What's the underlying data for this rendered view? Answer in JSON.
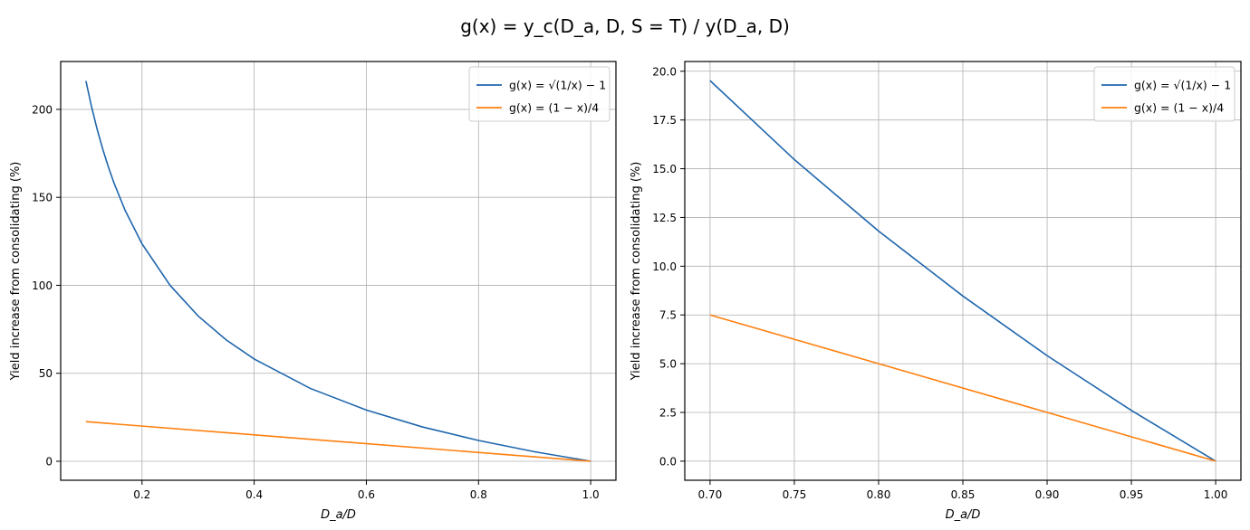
{
  "figure": {
    "title": "g(x) = y_c(D_a, D, S = T) / y(D_a, D)"
  },
  "chart_data": [
    {
      "type": "line",
      "xlabel": "D_a/D",
      "ylabel": "Yield increase from consolidating (%)",
      "xlim": [
        0.055,
        1.045
      ],
      "ylim": [
        -10.8,
        227.2
      ],
      "xticks": [
        0.2,
        0.4,
        0.6,
        0.8,
        1.0
      ],
      "xtick_labels": [
        "0.2",
        "0.4",
        "0.6",
        "0.8",
        "1.0"
      ],
      "yticks": [
        0,
        50,
        100,
        150,
        200
      ],
      "ytick_labels": [
        "0",
        "50",
        "100",
        "150",
        "200"
      ],
      "grid": true,
      "legend_position": "top-right",
      "series": [
        {
          "name": "g(x) = √(1/x) − 1",
          "color": "#1f66ac",
          "x": [
            0.1,
            0.11,
            0.12,
            0.13,
            0.14,
            0.15,
            0.17,
            0.2,
            0.25,
            0.3,
            0.35,
            0.4,
            0.5,
            0.6,
            0.7,
            0.8,
            0.9,
            1.0
          ],
          "y": [
            216.2,
            201.5,
            188.7,
            177.4,
            167.3,
            158.2,
            142.5,
            123.6,
            100.0,
            82.6,
            69.0,
            58.1,
            41.4,
            29.1,
            19.5,
            11.8,
            5.4,
            0.0
          ]
        },
        {
          "name": "g(x) = (1 − x)/4",
          "color": "#ff7f0e",
          "x": [
            0.1,
            1.0
          ],
          "y": [
            22.5,
            0.0
          ]
        }
      ]
    },
    {
      "type": "line",
      "xlabel": "D_a/D",
      "ylabel": "Yield increase from consolidating (%)",
      "xlim": [
        0.685,
        1.015
      ],
      "ylim": [
        -0.98,
        20.5
      ],
      "xticks": [
        0.7,
        0.75,
        0.8,
        0.85,
        0.9,
        0.95,
        1.0
      ],
      "xtick_labels": [
        "0.70",
        "0.75",
        "0.80",
        "0.85",
        "0.90",
        "0.95",
        "1.00"
      ],
      "yticks": [
        0.0,
        2.5,
        5.0,
        7.5,
        10.0,
        12.5,
        15.0,
        17.5,
        20.0
      ],
      "ytick_labels": [
        "0.0",
        "2.5",
        "5.0",
        "7.5",
        "10.0",
        "12.5",
        "15.0",
        "17.5",
        "20.0"
      ],
      "grid": true,
      "legend_position": "top-right",
      "series": [
        {
          "name": "g(x) = √(1/x) − 1",
          "color": "#1f66ac",
          "x": [
            0.7,
            0.75,
            0.8,
            0.85,
            0.9,
            0.95,
            1.0
          ],
          "y": [
            19.52,
            15.47,
            11.8,
            8.47,
            5.41,
            2.6,
            0.0
          ]
        },
        {
          "name": "g(x) = (1 − x)/4",
          "color": "#ff7f0e",
          "x": [
            0.7,
            1.0
          ],
          "y": [
            7.5,
            0.0
          ]
        }
      ]
    }
  ]
}
